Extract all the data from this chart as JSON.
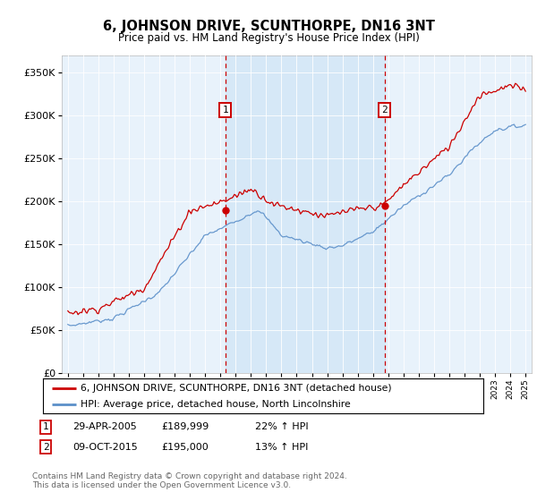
{
  "title": "6, JOHNSON DRIVE, SCUNTHORPE, DN16 3NT",
  "subtitle": "Price paid vs. HM Land Registry's House Price Index (HPI)",
  "legend_line1": "6, JOHNSON DRIVE, SCUNTHORPE, DN16 3NT (detached house)",
  "legend_line2": "HPI: Average price, detached house, North Lincolnshire",
  "annotation1_date": "29-APR-2005",
  "annotation1_price": "£189,999",
  "annotation1_hpi": "22% ↑ HPI",
  "annotation1_year": 2005.32,
  "annotation1_value": 189999,
  "annotation2_date": "09-OCT-2015",
  "annotation2_price": "£195,000",
  "annotation2_hpi": "13% ↑ HPI",
  "annotation2_year": 2015.77,
  "annotation2_value": 195000,
  "footer": "Contains HM Land Registry data © Crown copyright and database right 2024.\nThis data is licensed under the Open Government Licence v3.0.",
  "red_color": "#cc0000",
  "blue_color": "#5b8fc9",
  "shade_color": "#d6e8f7",
  "background_color": "#e8f2fb",
  "ylim": [
    0,
    370000
  ],
  "xlim_start": 1994.6,
  "xlim_end": 2025.4,
  "yticks": [
    0,
    50000,
    100000,
    150000,
    200000,
    250000,
    300000,
    350000
  ],
  "ytick_labels": [
    "£0",
    "£50K",
    "£100K",
    "£150K",
    "£200K",
    "£250K",
    "£300K",
    "£350K"
  ]
}
